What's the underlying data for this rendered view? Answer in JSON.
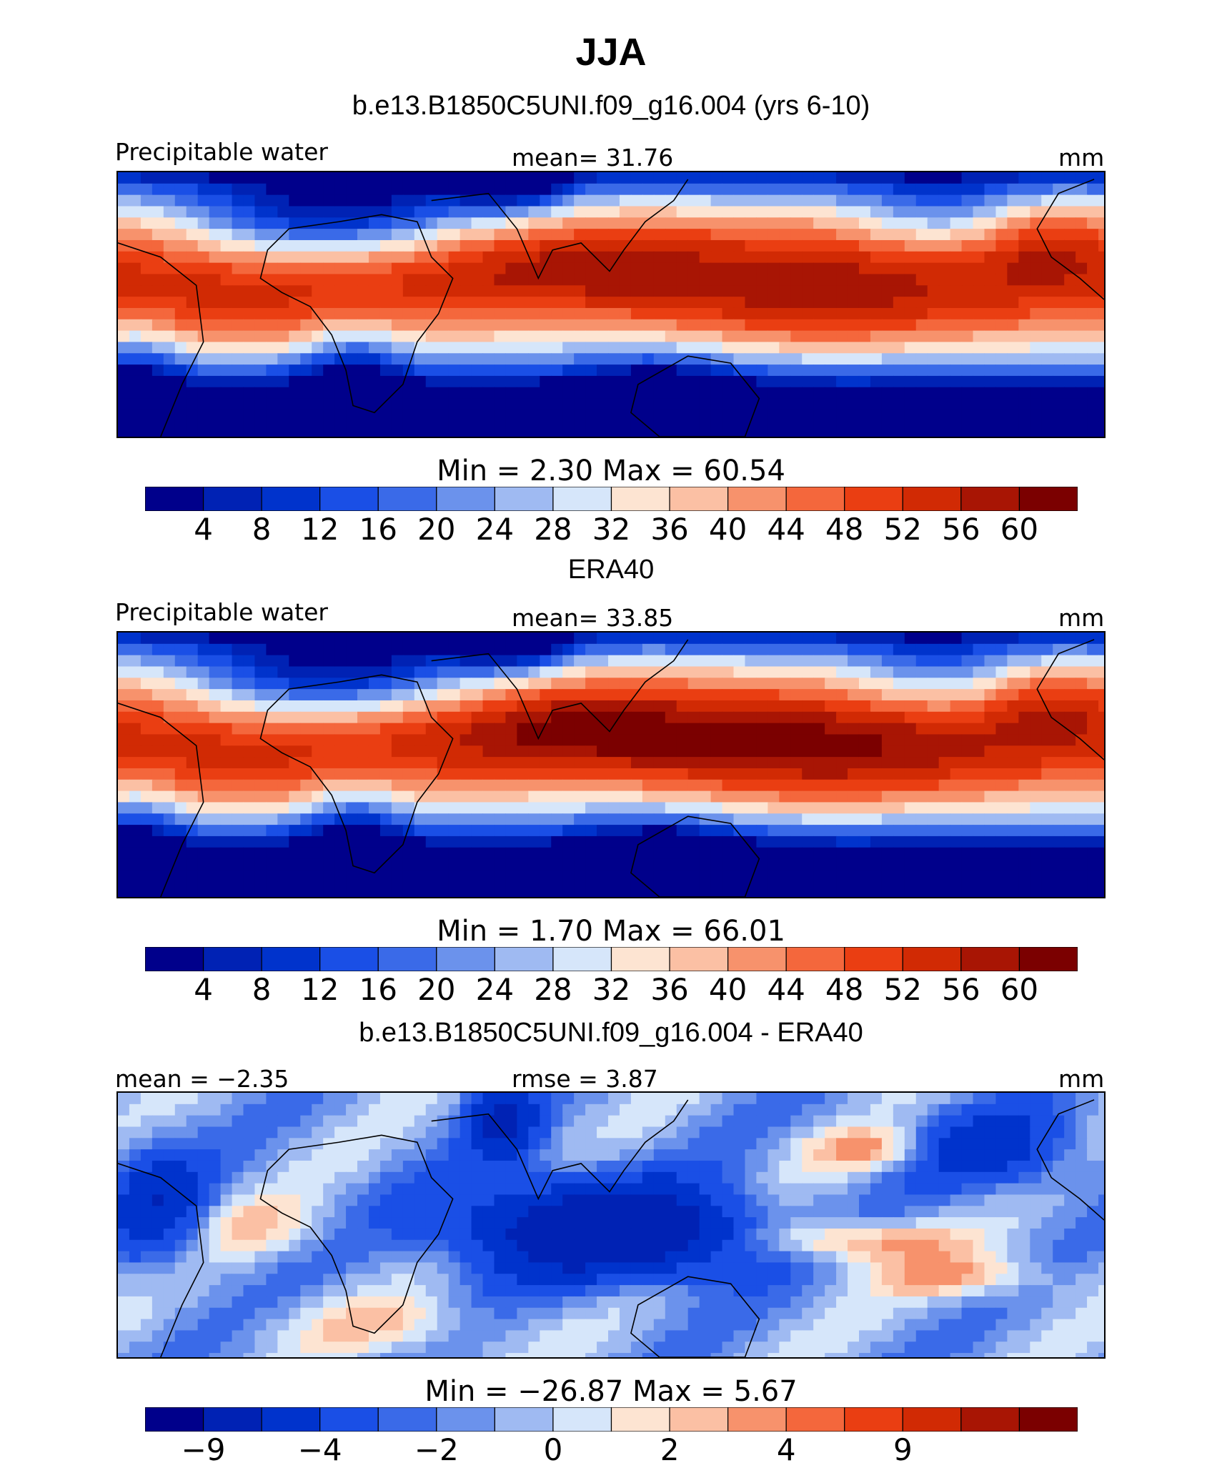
{
  "figure": {
    "season_title": "JJA",
    "panels": [
      {
        "title": "b.e13.B1850C5UNI.f09_g16.004 (yrs 6-10)",
        "left_label": "Precipitable water",
        "center_label": "mean=   31.76",
        "right_label": "mm",
        "min_max": "Min  =     2.30  Max  =    60.54",
        "scale": "absolute",
        "tick_labels": [
          "4",
          "8",
          "12",
          "16",
          "20",
          "24",
          "28",
          "32",
          "36",
          "40",
          "44",
          "48",
          "52",
          "56",
          "60"
        ]
      },
      {
        "title": "ERA40",
        "left_label": "Precipitable water",
        "center_label": "mean=   33.85",
        "right_label": "mm",
        "min_max": "Min  =     1.70  Max  =    66.01",
        "scale": "absolute",
        "tick_labels": [
          "4",
          "8",
          "12",
          "16",
          "20",
          "24",
          "28",
          "32",
          "36",
          "40",
          "44",
          "48",
          "52",
          "56",
          "60"
        ]
      },
      {
        "title": "b.e13.B1850C5UNI.f09_g16.004 - ERA40",
        "left_label": "mean =   −2.35",
        "center_label": "rmse =    3.87",
        "right_label": "mm",
        "min_max": "Min  =  −26.87  Max  =     5.67",
        "scale": "difference",
        "tick_labels": [
          "−9",
          "−4",
          "−2",
          "0",
          "2",
          "4",
          "9"
        ]
      }
    ]
  },
  "chart_data": [
    {
      "type": "heatmap",
      "title": "b.e13.B1850C5UNI.f09_g16.004 (yrs 6-10)",
      "variable": "Precipitable water",
      "units": "mm",
      "mean": 31.76,
      "min": 2.3,
      "max": 60.54,
      "levels": [
        4,
        8,
        12,
        16,
        20,
        24,
        28,
        32,
        36,
        40,
        44,
        48,
        52,
        56,
        60
      ],
      "colors": [
        "#00008b",
        "#0022b4",
        "#0033cc",
        "#1a4fe6",
        "#3a6ae8",
        "#6b92ec",
        "#9fbaf2",
        "#d6e6fa",
        "#fde4d2",
        "#fbc0a4",
        "#f7926c",
        "#f4673c",
        "#ea3e12",
        "#d12a04",
        "#a81504",
        "#7b0000"
      ]
    },
    {
      "type": "heatmap",
      "title": "ERA40",
      "variable": "Precipitable water",
      "units": "mm",
      "mean": 33.85,
      "min": 1.7,
      "max": 66.01,
      "levels": [
        4,
        8,
        12,
        16,
        20,
        24,
        28,
        32,
        36,
        40,
        44,
        48,
        52,
        56,
        60
      ],
      "colors": [
        "#00008b",
        "#0022b4",
        "#0033cc",
        "#1a4fe6",
        "#3a6ae8",
        "#6b92ec",
        "#9fbaf2",
        "#d6e6fa",
        "#fde4d2",
        "#fbc0a4",
        "#f7926c",
        "#f4673c",
        "#ea3e12",
        "#d12a04",
        "#a81504",
        "#7b0000"
      ]
    },
    {
      "type": "heatmap",
      "title": "b.e13.B1850C5UNI.f09_g16.004 - ERA40",
      "units": "mm",
      "mean": -2.35,
      "rmse": 3.87,
      "min": -26.87,
      "max": 5.67,
      "levels": [
        -9,
        -6,
        -4,
        -3,
        -2,
        -1,
        0,
        1,
        2,
        3,
        4,
        6,
        9
      ],
      "tick_labels": [
        "−9",
        "−4",
        "−2",
        "0",
        "2",
        "4",
        "9"
      ],
      "colors": [
        "#00008b",
        "#0022b4",
        "#0033cc",
        "#1a4fe6",
        "#3a6ae8",
        "#6b92ec",
        "#9fbaf2",
        "#d6e6fa",
        "#fde4d2",
        "#fbc0a4",
        "#f7926c",
        "#f4673c",
        "#ea3e12",
        "#d12a04",
        "#a81504",
        "#7b0000"
      ]
    }
  ]
}
